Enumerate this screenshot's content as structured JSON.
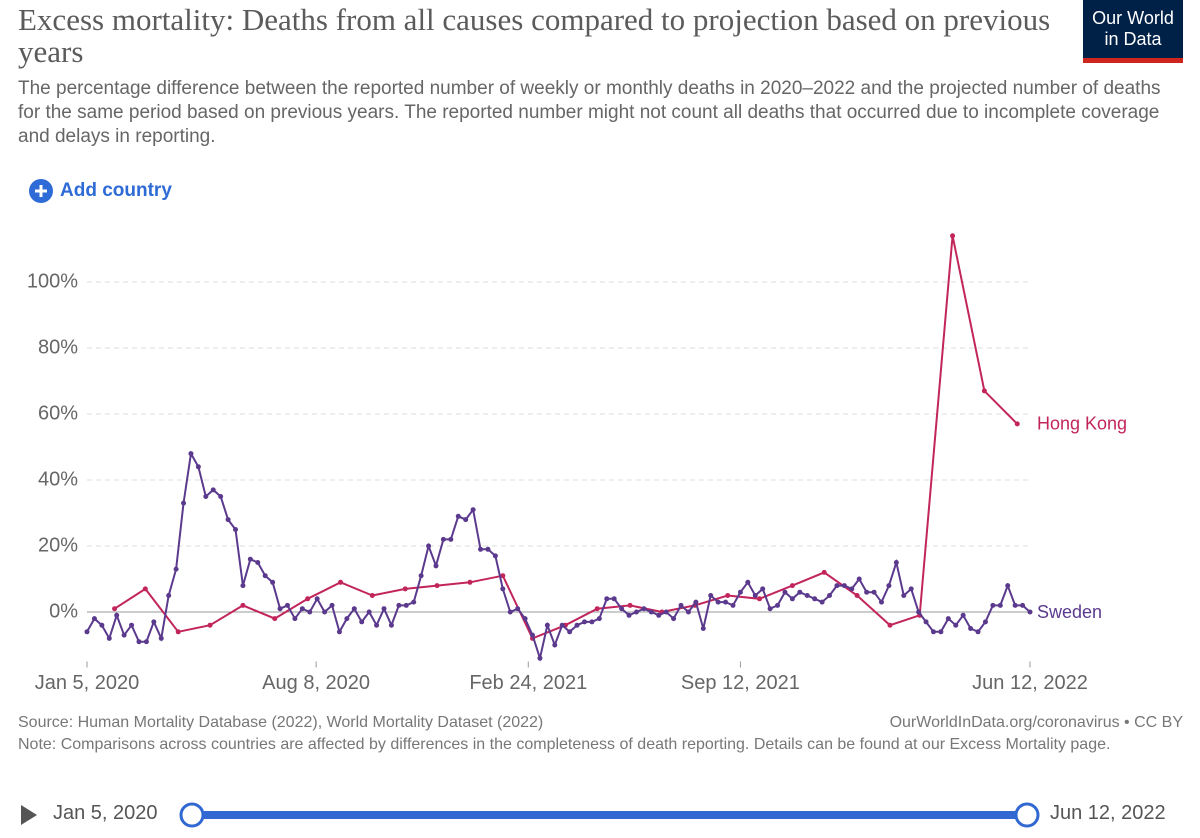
{
  "header": {
    "title": "Excess mortality: Deaths from all causes compared to projection based on previous years",
    "subtitle": "The percentage difference between the reported number of weekly or monthly deaths in 2020–2022 and the projected number of deaths for the same period based on previous years. The reported number might not count all deaths that occurred due to incomplete coverage and delays in reporting.",
    "logo": "Our World in Data",
    "add_button": "Add country"
  },
  "footer": {
    "source": "Source: Human Mortality Database (2022), World Mortality Dataset (2022)",
    "link": "OurWorldInData.org/coronavirus • CC BY",
    "note": "Note: Comparisons across countries are affected by differences in the completeness of death reporting. Details can be found at our Excess Mortality page."
  },
  "chart_data": {
    "type": "line",
    "grid": true,
    "xlim": [
      "2020-01-05",
      "2022-06-12"
    ],
    "xticks": [
      {
        "value": "2020-01-05",
        "label": "Jan 5, 2020"
      },
      {
        "value": "2020-08-08",
        "label": "Aug 8, 2020"
      },
      {
        "value": "2021-02-24",
        "label": "Feb 24, 2021"
      },
      {
        "value": "2021-09-12",
        "label": "Sep 12, 2021"
      },
      {
        "value": "2022-06-12",
        "label": "Jun 12, 2022"
      }
    ],
    "ylim": [
      -15,
      115
    ],
    "yticks": [
      {
        "value": 0,
        "label": "0%"
      },
      {
        "value": 20,
        "label": "20%"
      },
      {
        "value": 40,
        "label": "40%"
      },
      {
        "value": 60,
        "label": "60%"
      },
      {
        "value": 80,
        "label": "80%"
      },
      {
        "value": 100,
        "label": "100%"
      }
    ],
    "series": [
      {
        "name": "Hong Kong",
        "color": "#c2255c",
        "x": [
          "2020-01-31",
          "2020-02-29",
          "2020-03-31",
          "2020-04-30",
          "2020-05-31",
          "2020-06-30",
          "2020-07-31",
          "2020-08-31",
          "2020-09-30",
          "2020-10-31",
          "2020-11-30",
          "2020-12-31",
          "2021-01-31",
          "2021-02-28",
          "2021-03-31",
          "2021-04-30",
          "2021-05-31",
          "2021-06-30",
          "2021-07-31",
          "2021-08-31",
          "2021-09-30",
          "2021-10-31",
          "2021-11-30",
          "2021-12-31",
          "2022-01-31",
          "2022-02-28",
          "2022-03-31",
          "2022-04-30",
          "2022-05-31"
        ],
        "values": [
          1,
          7,
          -6,
          -4,
          2,
          -2,
          4,
          9,
          5,
          7,
          8,
          9,
          11,
          -8,
          -4,
          1,
          2,
          0,
          2,
          5,
          4,
          8,
          12,
          5,
          -4,
          -1,
          114,
          67,
          57
        ]
      },
      {
        "name": "Sweden",
        "color": "#5b3a8e",
        "x": [
          "2020-01-05",
          "2020-01-12",
          "2020-01-19",
          "2020-01-26",
          "2020-02-02",
          "2020-02-09",
          "2020-02-16",
          "2020-02-23",
          "2020-03-01",
          "2020-03-08",
          "2020-03-15",
          "2020-03-22",
          "2020-03-29",
          "2020-04-05",
          "2020-04-12",
          "2020-04-19",
          "2020-04-26",
          "2020-05-03",
          "2020-05-10",
          "2020-05-17",
          "2020-05-24",
          "2020-05-31",
          "2020-06-07",
          "2020-06-14",
          "2020-06-21",
          "2020-06-28",
          "2020-07-05",
          "2020-07-12",
          "2020-07-19",
          "2020-07-26",
          "2020-08-02",
          "2020-08-09",
          "2020-08-16",
          "2020-08-23",
          "2020-08-30",
          "2020-09-06",
          "2020-09-13",
          "2020-09-20",
          "2020-09-27",
          "2020-10-04",
          "2020-10-11",
          "2020-10-18",
          "2020-10-25",
          "2020-11-01",
          "2020-11-08",
          "2020-11-15",
          "2020-11-22",
          "2020-11-29",
          "2020-12-06",
          "2020-12-13",
          "2020-12-20",
          "2020-12-27",
          "2021-01-03",
          "2021-01-10",
          "2021-01-17",
          "2021-01-24",
          "2021-01-31",
          "2021-02-07",
          "2021-02-14",
          "2021-02-21",
          "2021-02-28",
          "2021-03-07",
          "2021-03-14",
          "2021-03-21",
          "2021-03-28",
          "2021-04-04",
          "2021-04-11",
          "2021-04-18",
          "2021-04-25",
          "2021-05-02",
          "2021-05-09",
          "2021-05-16",
          "2021-05-23",
          "2021-05-30",
          "2021-06-06",
          "2021-06-13",
          "2021-06-20",
          "2021-06-27",
          "2021-07-04",
          "2021-07-11",
          "2021-07-18",
          "2021-07-25",
          "2021-08-01",
          "2021-08-08",
          "2021-08-15",
          "2021-08-22",
          "2021-08-29",
          "2021-09-05",
          "2021-09-12",
          "2021-09-19",
          "2021-09-26",
          "2021-10-03",
          "2021-10-10",
          "2021-10-17",
          "2021-10-24",
          "2021-10-31",
          "2021-11-07",
          "2021-11-14",
          "2021-11-21",
          "2021-11-28",
          "2021-12-05",
          "2021-12-12",
          "2021-12-19",
          "2021-12-26",
          "2022-01-02",
          "2022-01-09",
          "2022-01-16",
          "2022-01-23",
          "2022-01-30",
          "2022-02-06",
          "2022-02-13",
          "2022-02-20",
          "2022-02-27",
          "2022-03-06",
          "2022-03-13",
          "2022-03-20",
          "2022-03-27",
          "2022-04-03",
          "2022-04-10",
          "2022-04-17",
          "2022-04-24",
          "2022-05-01",
          "2022-05-08",
          "2022-05-15",
          "2022-05-22",
          "2022-05-29",
          "2022-06-05",
          "2022-06-12"
        ],
        "values": [
          -6,
          -2,
          -4,
          -8,
          -1,
          -7,
          -4,
          -9,
          -9,
          -3,
          -8,
          5,
          13,
          33,
          48,
          44,
          35,
          37,
          35,
          28,
          25,
          8,
          16,
          15,
          11,
          9,
          1,
          2,
          -2,
          1,
          0,
          4,
          0,
          2,
          -6,
          -2,
          1,
          -3,
          0,
          -4,
          1,
          -4,
          2,
          2,
          3,
          11,
          20,
          14,
          22,
          22,
          29,
          28,
          31,
          19,
          19,
          17,
          7,
          0,
          1,
          -2,
          -7,
          -14,
          -4,
          -10,
          -4,
          -6,
          -4,
          -3,
          -3,
          -2,
          4,
          4,
          1,
          -1,
          0,
          1,
          0,
          -1,
          0,
          -2,
          2,
          0,
          3,
          -5,
          5,
          3,
          3,
          2,
          6,
          9,
          5,
          7,
          1,
          2,
          6,
          4,
          6,
          5,
          4,
          3,
          5,
          8,
          8,
          7,
          10,
          6,
          6,
          3,
          8,
          15,
          5,
          7,
          0,
          -3,
          -6,
          -6,
          -2,
          -4,
          -1,
          -5,
          -6,
          -3,
          2,
          2,
          8,
          2,
          2,
          0
        ]
      }
    ]
  }
}
